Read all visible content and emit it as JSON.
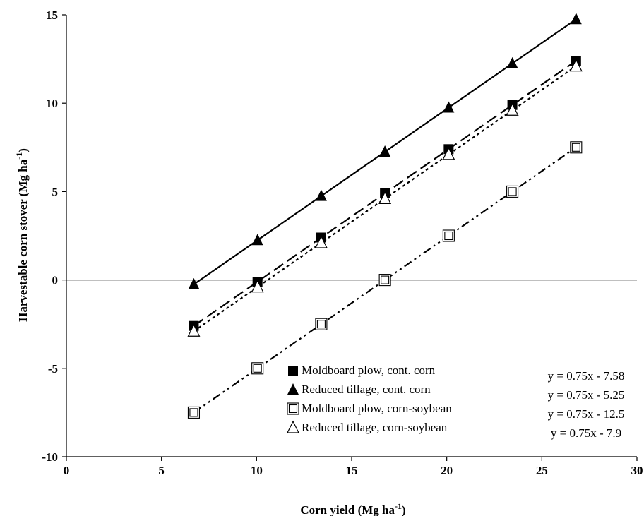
{
  "chart_data": {
    "type": "scatter",
    "title": "",
    "xlabel": "Corn yield (Mg ha",
    "xlabel_sup": "-1",
    "xlabel_end": ")",
    "ylabel": "Harvestable corn stover  (Mg ha",
    "ylabel_sup": "-1",
    "ylabel_end": ")",
    "xlim": [
      0,
      30
    ],
    "ylim": [
      -10,
      15
    ],
    "xticks": [
      "0",
      "5",
      "10",
      "15",
      "20",
      "25",
      "30"
    ],
    "yticks": [
      "15",
      "10",
      "5",
      "0",
      "-5",
      "-10"
    ],
    "grid": false,
    "legend_position": "bottom-right",
    "x": [
      6.7,
      10.05,
      13.4,
      16.75,
      20.1,
      23.45,
      26.8
    ],
    "series": [
      {
        "name": "Moldboard plow, cont. corn",
        "marker": "square-filled",
        "line": "long-dash",
        "equation": "y = 0.75x - 7.58",
        "values": [
          -2.6,
          -0.1,
          2.4,
          4.9,
          7.4,
          9.9,
          12.4
        ]
      },
      {
        "name": "Reduced tillage, cont. corn",
        "marker": "triangle-filled",
        "line": "solid",
        "equation": "y = 0.75x - 5.25",
        "values": [
          -0.25,
          2.25,
          4.75,
          7.25,
          9.75,
          12.25,
          14.75
        ]
      },
      {
        "name": "Moldboard plow, corn-soybean",
        "marker": "square-open-double",
        "line": "dash-dot-dot",
        "equation": "y = 0.75x - 12.5",
        "values": [
          -7.5,
          -5.0,
          -2.5,
          0.0,
          2.5,
          5.0,
          7.5
        ]
      },
      {
        "name": "Reduced tillage, corn-soybean",
        "marker": "triangle-open",
        "line": "short-dash",
        "equation": "y = 0.75x - 7.9",
        "values": [
          -2.9,
          -0.4,
          2.1,
          4.6,
          7.1,
          9.6,
          12.1
        ]
      }
    ]
  }
}
